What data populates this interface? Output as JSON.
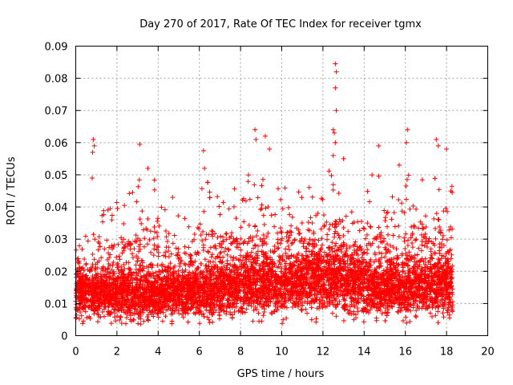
{
  "chart_data": {
    "type": "scatter",
    "title": "Day 270 of 2017, Rate Of TEC Index for receiver tgmx",
    "xlabel": "GPS time / hours",
    "ylabel": "ROTI / TECUs",
    "xlim": [
      0,
      20
    ],
    "ylim": [
      0,
      0.09
    ],
    "xticks": [
      0,
      2,
      4,
      6,
      8,
      10,
      12,
      14,
      16,
      18,
      20
    ],
    "xtick_labels": [
      "0",
      "2",
      "4",
      "6",
      "8",
      "10",
      "12",
      "14",
      "16",
      "18",
      "20"
    ],
    "yticks": [
      0,
      0.01,
      0.02,
      0.03,
      0.04,
      0.05,
      0.06,
      0.07,
      0.08,
      0.09
    ],
    "ytick_labels": [
      "0",
      "0.01",
      "0.02",
      "0.03",
      "0.04",
      "0.05",
      "0.06",
      "0.07",
      "0.08",
      "0.09"
    ],
    "grid": true,
    "marker": "+",
    "color": "#ff0000",
    "data_x_range": [
      0,
      18.3
    ],
    "notable_points": [
      {
        "x": 0.85,
        "y": 0.061
      },
      {
        "x": 0.9,
        "y": 0.059
      },
      {
        "x": 0.82,
        "y": 0.057
      },
      {
        "x": 0.8,
        "y": 0.049
      },
      {
        "x": 3.1,
        "y": 0.0595
      },
      {
        "x": 3.5,
        "y": 0.052
      },
      {
        "x": 4.7,
        "y": 0.043
      },
      {
        "x": 6.2,
        "y": 0.0575
      },
      {
        "x": 6.25,
        "y": 0.052
      },
      {
        "x": 8.7,
        "y": 0.064
      },
      {
        "x": 8.75,
        "y": 0.061
      },
      {
        "x": 9.2,
        "y": 0.062
      },
      {
        "x": 9.4,
        "y": 0.058
      },
      {
        "x": 12.5,
        "y": 0.064
      },
      {
        "x": 12.6,
        "y": 0.0845
      },
      {
        "x": 12.65,
        "y": 0.082
      },
      {
        "x": 12.6,
        "y": 0.077
      },
      {
        "x": 12.65,
        "y": 0.07
      },
      {
        "x": 12.55,
        "y": 0.063
      },
      {
        "x": 12.5,
        "y": 0.056
      },
      {
        "x": 12.6,
        "y": 0.06
      },
      {
        "x": 13.0,
        "y": 0.055
      },
      {
        "x": 14.7,
        "y": 0.059
      },
      {
        "x": 15.7,
        "y": 0.053
      },
      {
        "x": 16.1,
        "y": 0.064
      },
      {
        "x": 16.05,
        "y": 0.06
      },
      {
        "x": 17.5,
        "y": 0.061
      },
      {
        "x": 17.6,
        "y": 0.059
      },
      {
        "x": 18.0,
        "y": 0.058
      }
    ],
    "segments": [
      {
        "x0": 0.0,
        "x1": 1.0,
        "base": 0.013,
        "spread": 0.008,
        "peak": 0.033
      },
      {
        "x0": 1.0,
        "x1": 2.0,
        "base": 0.013,
        "spread": 0.008,
        "peak": 0.042
      },
      {
        "x0": 2.0,
        "x1": 3.0,
        "base": 0.013,
        "spread": 0.009,
        "peak": 0.045
      },
      {
        "x0": 3.0,
        "x1": 4.0,
        "base": 0.013,
        "spread": 0.009,
        "peak": 0.05
      },
      {
        "x0": 4.0,
        "x1": 5.0,
        "base": 0.013,
        "spread": 0.008,
        "peak": 0.04
      },
      {
        "x0": 5.0,
        "x1": 6.0,
        "base": 0.013,
        "spread": 0.008,
        "peak": 0.037
      },
      {
        "x0": 6.0,
        "x1": 7.0,
        "base": 0.014,
        "spread": 0.009,
        "peak": 0.05
      },
      {
        "x0": 7.0,
        "x1": 8.0,
        "base": 0.015,
        "spread": 0.009,
        "peak": 0.046
      },
      {
        "x0": 8.0,
        "x1": 9.0,
        "base": 0.016,
        "spread": 0.01,
        "peak": 0.05
      },
      {
        "x0": 9.0,
        "x1": 10.0,
        "base": 0.016,
        "spread": 0.01,
        "peak": 0.05
      },
      {
        "x0": 10.0,
        "x1": 11.0,
        "base": 0.016,
        "spread": 0.01,
        "peak": 0.046
      },
      {
        "x0": 11.0,
        "x1": 12.0,
        "base": 0.017,
        "spread": 0.011,
        "peak": 0.047
      },
      {
        "x0": 12.0,
        "x1": 13.0,
        "base": 0.018,
        "spread": 0.011,
        "peak": 0.052
      },
      {
        "x0": 13.0,
        "x1": 14.0,
        "base": 0.016,
        "spread": 0.01,
        "peak": 0.04
      },
      {
        "x0": 14.0,
        "x1": 15.0,
        "base": 0.015,
        "spread": 0.009,
        "peak": 0.05
      },
      {
        "x0": 15.0,
        "x1": 16.0,
        "base": 0.015,
        "spread": 0.009,
        "peak": 0.045
      },
      {
        "x0": 16.0,
        "x1": 17.0,
        "base": 0.015,
        "spread": 0.01,
        "peak": 0.05
      },
      {
        "x0": 17.0,
        "x1": 18.3,
        "base": 0.015,
        "spread": 0.01,
        "peak": 0.05
      }
    ]
  }
}
